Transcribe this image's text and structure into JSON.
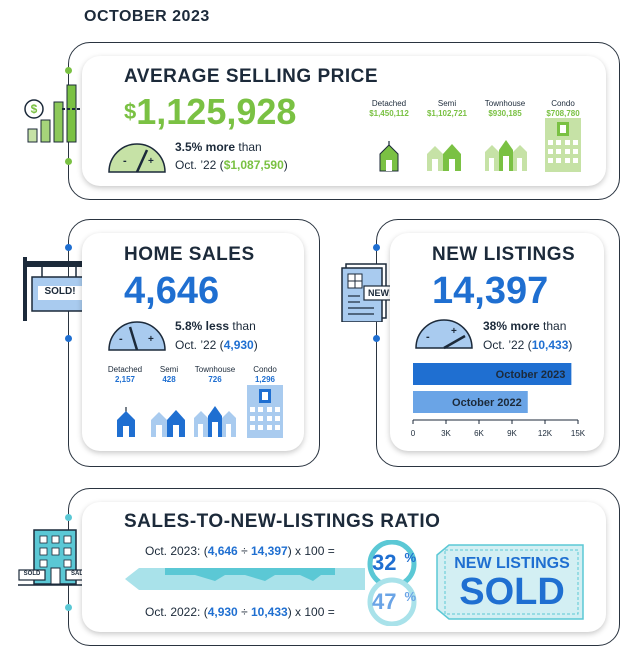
{
  "header": {
    "title": "OCTOBER 2023"
  },
  "avg_price": {
    "title": "AVERAGE SELLING PRICE",
    "value_symbol": "$",
    "value": "1,125,928",
    "change_bold": "3.5% more",
    "change_rest": " than",
    "compare_prefix": "Oct. ’22 (",
    "compare_symbol": "$",
    "compare_value": "1,087,590",
    "compare_suffix": ")",
    "types": [
      {
        "label": "Detached",
        "value": "$1,450,112"
      },
      {
        "label": "Semi",
        "value": "$1,102,721"
      },
      {
        "label": "Townhouse",
        "value": "$930,185"
      },
      {
        "label": "Condo",
        "value": "$708,780"
      }
    ],
    "colors": {
      "accent": "#7ac143",
      "light": "#c6e2a6"
    }
  },
  "home_sales": {
    "title": "HOME SALES",
    "value": "4,646",
    "change_bold": "5.8% less",
    "change_rest": " than",
    "compare_prefix": "Oct. ’22 (",
    "compare_value": "4,930",
    "compare_suffix": ")",
    "sign_text": "SOLD!",
    "types": [
      {
        "label": "Detached",
        "value": "2,157"
      },
      {
        "label": "Semi",
        "value": "428"
      },
      {
        "label": "Townhouse",
        "value": "726"
      },
      {
        "label": "Condo",
        "value": "1,296"
      }
    ]
  },
  "new_listings": {
    "title": "NEW LISTINGS",
    "value": "14,397",
    "change_bold": "38% more",
    "change_rest": " than",
    "compare_prefix": "Oct. ’22 (",
    "compare_value": "10,433",
    "compare_suffix": ")",
    "doc_badge": "NEW!"
  },
  "chart_data": {
    "type": "bar",
    "orientation": "horizontal",
    "categories": [
      "October 2023",
      "October 2022"
    ],
    "values": [
      14397,
      10433
    ],
    "xlim": [
      0,
      15000
    ],
    "xticks": [
      "0",
      "3K",
      "6K",
      "9K",
      "12K",
      "15K"
    ],
    "colors": [
      "#1f6fd1",
      "#6aa4e6"
    ]
  },
  "ratio": {
    "title": "SALES-TO-NEW-LISTINGS RATIO",
    "row1": {
      "prefix": "Oct. 2023: (",
      "a": "4,646",
      "op": " ÷ ",
      "b": "14,397",
      "suffix": ") x 100 ="
    },
    "row2": {
      "prefix": "Oct. 2022: (",
      "a": "4,930",
      "op": " ÷ ",
      "b": "10,433",
      "suffix": ") x 100 ="
    },
    "pct1": "32",
    "pct2": "47",
    "pct_sign": "%",
    "tag_line1": "NEW LISTINGS",
    "tag_line2": "SOLD",
    "building_signs": [
      "SOLD",
      "SALE"
    ]
  },
  "colors": {
    "navy": "#1c2a3a",
    "blue": "#1f6fd1",
    "light_blue": "#a9cbef",
    "green": "#7ac143",
    "teal": "#5bc8d5"
  }
}
